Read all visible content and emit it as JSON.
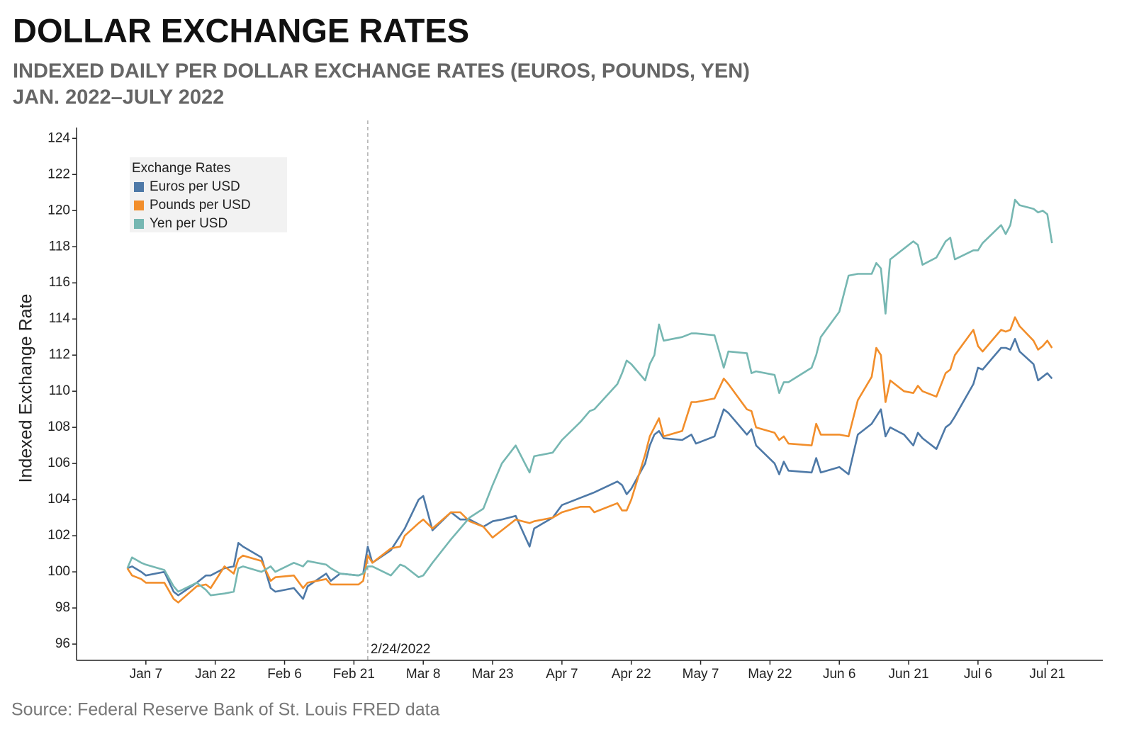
{
  "chart_data": {
    "type": "line",
    "title": "DOLLAR EXCHANGE RATES",
    "subtitle": [
      "INDEXED DAILY PER DOLLAR EXCHANGE RATES (EUROS, POUNDS, YEN)",
      "JAN. 2022–JULY 2022"
    ],
    "y_label": "Indexed Exchange Rate",
    "source": "Source: Federal Reserve Bank of St. Louis FRED data",
    "legend_title": "Exchange Rates",
    "annotation": {
      "text": "2/24/2022",
      "x": "2022-02-24"
    },
    "x": [
      "2022-01-03",
      "2022-01-04",
      "2022-01-06",
      "2022-01-07",
      "2022-01-11",
      "2022-01-13",
      "2022-01-14",
      "2022-01-18",
      "2022-01-20",
      "2022-01-21",
      "2022-01-24",
      "2022-01-26",
      "2022-01-27",
      "2022-01-28",
      "2022-02-01",
      "2022-02-03",
      "2022-02-04",
      "2022-02-08",
      "2022-02-10",
      "2022-02-11",
      "2022-02-15",
      "2022-02-16",
      "2022-02-18",
      "2022-02-22",
      "2022-02-23",
      "2022-02-24",
      "2022-02-25",
      "2022-03-01",
      "2022-03-03",
      "2022-03-04",
      "2022-03-07",
      "2022-03-08",
      "2022-03-10",
      "2022-03-14",
      "2022-03-16",
      "2022-03-18",
      "2022-03-21",
      "2022-03-23",
      "2022-03-25",
      "2022-03-28",
      "2022-03-31",
      "2022-04-01",
      "2022-04-05",
      "2022-04-07",
      "2022-04-11",
      "2022-04-13",
      "2022-04-14",
      "2022-04-19",
      "2022-04-20",
      "2022-04-21",
      "2022-04-22",
      "2022-04-25",
      "2022-04-26",
      "2022-04-27",
      "2022-04-28",
      "2022-04-29",
      "2022-05-03",
      "2022-05-05",
      "2022-05-06",
      "2022-05-10",
      "2022-05-12",
      "2022-05-13",
      "2022-05-17",
      "2022-05-18",
      "2022-05-19",
      "2022-05-23",
      "2022-05-24",
      "2022-05-25",
      "2022-05-26",
      "2022-05-31",
      "2022-06-01",
      "2022-06-02",
      "2022-06-06",
      "2022-06-08",
      "2022-06-10",
      "2022-06-13",
      "2022-06-14",
      "2022-06-15",
      "2022-06-16",
      "2022-06-17",
      "2022-06-20",
      "2022-06-22",
      "2022-06-23",
      "2022-06-24",
      "2022-06-27",
      "2022-06-29",
      "2022-06-30",
      "2022-07-01",
      "2022-07-05",
      "2022-07-06",
      "2022-07-07",
      "2022-07-11",
      "2022-07-12",
      "2022-07-13",
      "2022-07-14",
      "2022-07-15",
      "2022-07-18",
      "2022-07-19",
      "2022-07-20",
      "2022-07-21",
      "2022-07-22"
    ],
    "series": [
      {
        "name": "Euros per USD",
        "color": "#4e79a7",
        "values": [
          100.2,
          100.3,
          100.0,
          99.8,
          100.0,
          98.9,
          98.7,
          99.4,
          99.8,
          99.8,
          100.2,
          100.3,
          101.6,
          101.4,
          100.8,
          99.1,
          98.9,
          99.1,
          98.5,
          99.2,
          99.9,
          99.5,
          99.9,
          99.8,
          99.9,
          101.4,
          100.5,
          101.2,
          102.0,
          102.4,
          104.0,
          104.2,
          102.3,
          103.3,
          102.9,
          102.9,
          102.5,
          102.8,
          102.9,
          103.1,
          101.4,
          102.4,
          103.0,
          103.7,
          104.1,
          104.3,
          104.4,
          105.0,
          104.8,
          104.3,
          104.6,
          106.0,
          107.0,
          107.6,
          107.8,
          107.4,
          107.3,
          107.6,
          107.1,
          107.5,
          109.0,
          108.8,
          107.6,
          107.9,
          107.0,
          106.0,
          105.4,
          106.1,
          105.6,
          105.5,
          106.3,
          105.5,
          105.8,
          105.4,
          107.6,
          108.2,
          108.6,
          109.0,
          107.5,
          108.0,
          107.6,
          107.0,
          107.7,
          107.4,
          106.8,
          108.0,
          108.2,
          108.6,
          110.4,
          111.3,
          111.2,
          112.4,
          112.4,
          112.3,
          112.9,
          112.2,
          111.5,
          110.6,
          110.8,
          111.0,
          110.7
        ]
      },
      {
        "name": "Pounds per USD",
        "color": "#f28e2b",
        "values": [
          100.2,
          99.8,
          99.6,
          99.4,
          99.4,
          98.5,
          98.3,
          99.2,
          99.3,
          99.1,
          100.3,
          99.9,
          100.7,
          100.9,
          100.6,
          99.5,
          99.7,
          99.8,
          99.1,
          99.4,
          99.6,
          99.3,
          99.3,
          99.3,
          99.5,
          100.9,
          100.5,
          101.3,
          101.4,
          102.0,
          102.7,
          102.9,
          102.4,
          103.3,
          103.3,
          102.8,
          102.5,
          101.9,
          102.3,
          102.9,
          102.7,
          102.8,
          103.0,
          103.3,
          103.6,
          103.6,
          103.3,
          103.8,
          103.4,
          103.4,
          104.0,
          106.5,
          107.5,
          108.0,
          108.5,
          107.5,
          107.8,
          109.4,
          109.4,
          109.6,
          110.7,
          110.4,
          109.0,
          108.9,
          108.0,
          107.7,
          107.3,
          107.5,
          107.1,
          107.0,
          108.2,
          107.6,
          107.6,
          107.5,
          109.5,
          110.8,
          112.4,
          112.0,
          109.4,
          110.6,
          110.0,
          109.9,
          110.3,
          110.0,
          109.7,
          111.0,
          111.2,
          112.0,
          113.4,
          112.5,
          112.2,
          113.4,
          113.3,
          113.4,
          114.1,
          113.6,
          112.8,
          112.3,
          112.5,
          112.8,
          112.4
        ]
      },
      {
        "name": "Yen per USD",
        "color": "#76b7b2",
        "values": [
          100.2,
          100.8,
          100.5,
          100.4,
          100.1,
          99.2,
          98.9,
          99.4,
          99.0,
          98.7,
          98.8,
          98.9,
          100.2,
          100.3,
          100.0,
          100.3,
          100.0,
          100.5,
          100.3,
          100.6,
          100.4,
          100.2,
          99.9,
          99.8,
          99.9,
          100.3,
          100.3,
          99.8,
          100.4,
          100.3,
          99.7,
          99.8,
          100.5,
          101.8,
          102.4,
          103.0,
          103.5,
          104.8,
          106.0,
          107.0,
          105.5,
          106.4,
          106.6,
          107.3,
          108.3,
          108.9,
          109.0,
          110.4,
          111.0,
          111.7,
          111.5,
          110.6,
          111.5,
          112.0,
          113.7,
          112.8,
          113.0,
          113.2,
          113.2,
          113.1,
          111.3,
          112.2,
          112.1,
          111.0,
          111.1,
          110.9,
          109.9,
          110.5,
          110.5,
          111.3,
          112.0,
          113.0,
          114.4,
          116.4,
          116.5,
          116.5,
          117.1,
          116.8,
          114.3,
          117.3,
          117.9,
          118.3,
          118.1,
          117.0,
          117.4,
          118.3,
          118.5,
          117.3,
          117.8,
          117.8,
          118.2,
          119.2,
          118.7,
          119.2,
          120.6,
          120.3,
          120.1,
          119.9,
          120.0,
          119.8,
          118.2
        ]
      }
    ],
    "xlim": [
      "2021-12-23",
      "2022-08-02"
    ],
    "xticks": [
      {
        "value": "2022-01-07",
        "label": "Jan 7"
      },
      {
        "value": "2022-01-22",
        "label": "Jan 22"
      },
      {
        "value": "2022-02-06",
        "label": "Feb 6"
      },
      {
        "value": "2022-02-21",
        "label": "Feb 21"
      },
      {
        "value": "2022-03-08",
        "label": "Mar 8"
      },
      {
        "value": "2022-03-23",
        "label": "Mar 23"
      },
      {
        "value": "2022-04-07",
        "label": "Apr 7"
      },
      {
        "value": "2022-04-22",
        "label": "Apr 22"
      },
      {
        "value": "2022-05-07",
        "label": "May 7"
      },
      {
        "value": "2022-05-22",
        "label": "May 22"
      },
      {
        "value": "2022-06-06",
        "label": "Jun 6"
      },
      {
        "value": "2022-06-21",
        "label": "Jun 21"
      },
      {
        "value": "2022-07-06",
        "label": "Jul 6"
      },
      {
        "value": "2022-07-21",
        "label": "Jul 21"
      }
    ],
    "ylim": [
      95.1,
      124.6
    ],
    "yticks": [
      96,
      98,
      100,
      102,
      104,
      106,
      108,
      110,
      112,
      114,
      116,
      118,
      120,
      122,
      124
    ]
  }
}
